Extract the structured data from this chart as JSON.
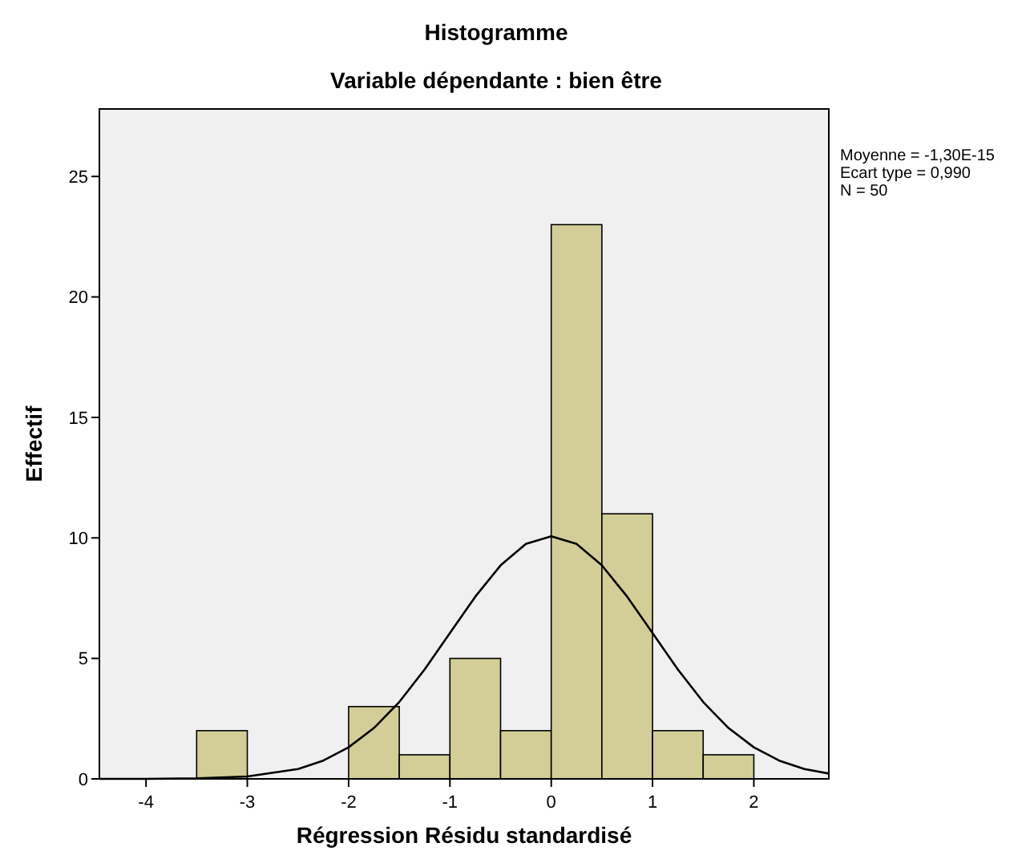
{
  "chart_data": {
    "type": "histogram",
    "title": "Histogramme",
    "subtitle": "Variable dépendante : bien être",
    "xlabel": "Régression Résidu standardisé",
    "ylabel": "Effectif",
    "bins": [
      -3.5,
      -3,
      -2.5,
      -2,
      -1.5,
      -1,
      -0.5,
      0,
      0.5,
      1,
      1.5,
      2
    ],
    "values": [
      2,
      0,
      0,
      3,
      1,
      5,
      2,
      23,
      11,
      2,
      1
    ],
    "color": "#d3ce97",
    "series": [
      {
        "type": "line",
        "color": "#000000",
        "x": [
          -4.46,
          -4,
          -3.5,
          -3,
          -2.5,
          -2.25,
          -2,
          -1.75,
          -1.5,
          -1.25,
          -1,
          -0.75,
          -0.5,
          -0.25,
          0,
          0.25,
          0.5,
          0.75,
          1,
          1.25,
          1.5,
          1.75,
          2,
          2.25,
          2.5,
          2.74
        ],
        "values": [
          0,
          0,
          0.02,
          0.1,
          0.41,
          0.76,
          1.31,
          2.11,
          3.19,
          4.54,
          6.05,
          7.56,
          8.86,
          9.75,
          10.07,
          9.75,
          8.86,
          7.56,
          6.05,
          4.54,
          3.19,
          2.11,
          1.31,
          0.76,
          0.41,
          0.22
        ]
      }
    ],
    "marker": "none",
    "line_style": "solid",
    "grid": false,
    "xlim": [
      -4.46,
      2.74
    ],
    "xticks": [
      -4,
      -3,
      -2,
      -1,
      0,
      1,
      2
    ],
    "ylim": [
      0,
      27.8
    ],
    "yticks": [
      0,
      5,
      10,
      15,
      20,
      25
    ],
    "annotations": [
      "Moyenne = -1,30E-15",
      "Ecart type = 0,990",
      "N = 50"
    ]
  }
}
